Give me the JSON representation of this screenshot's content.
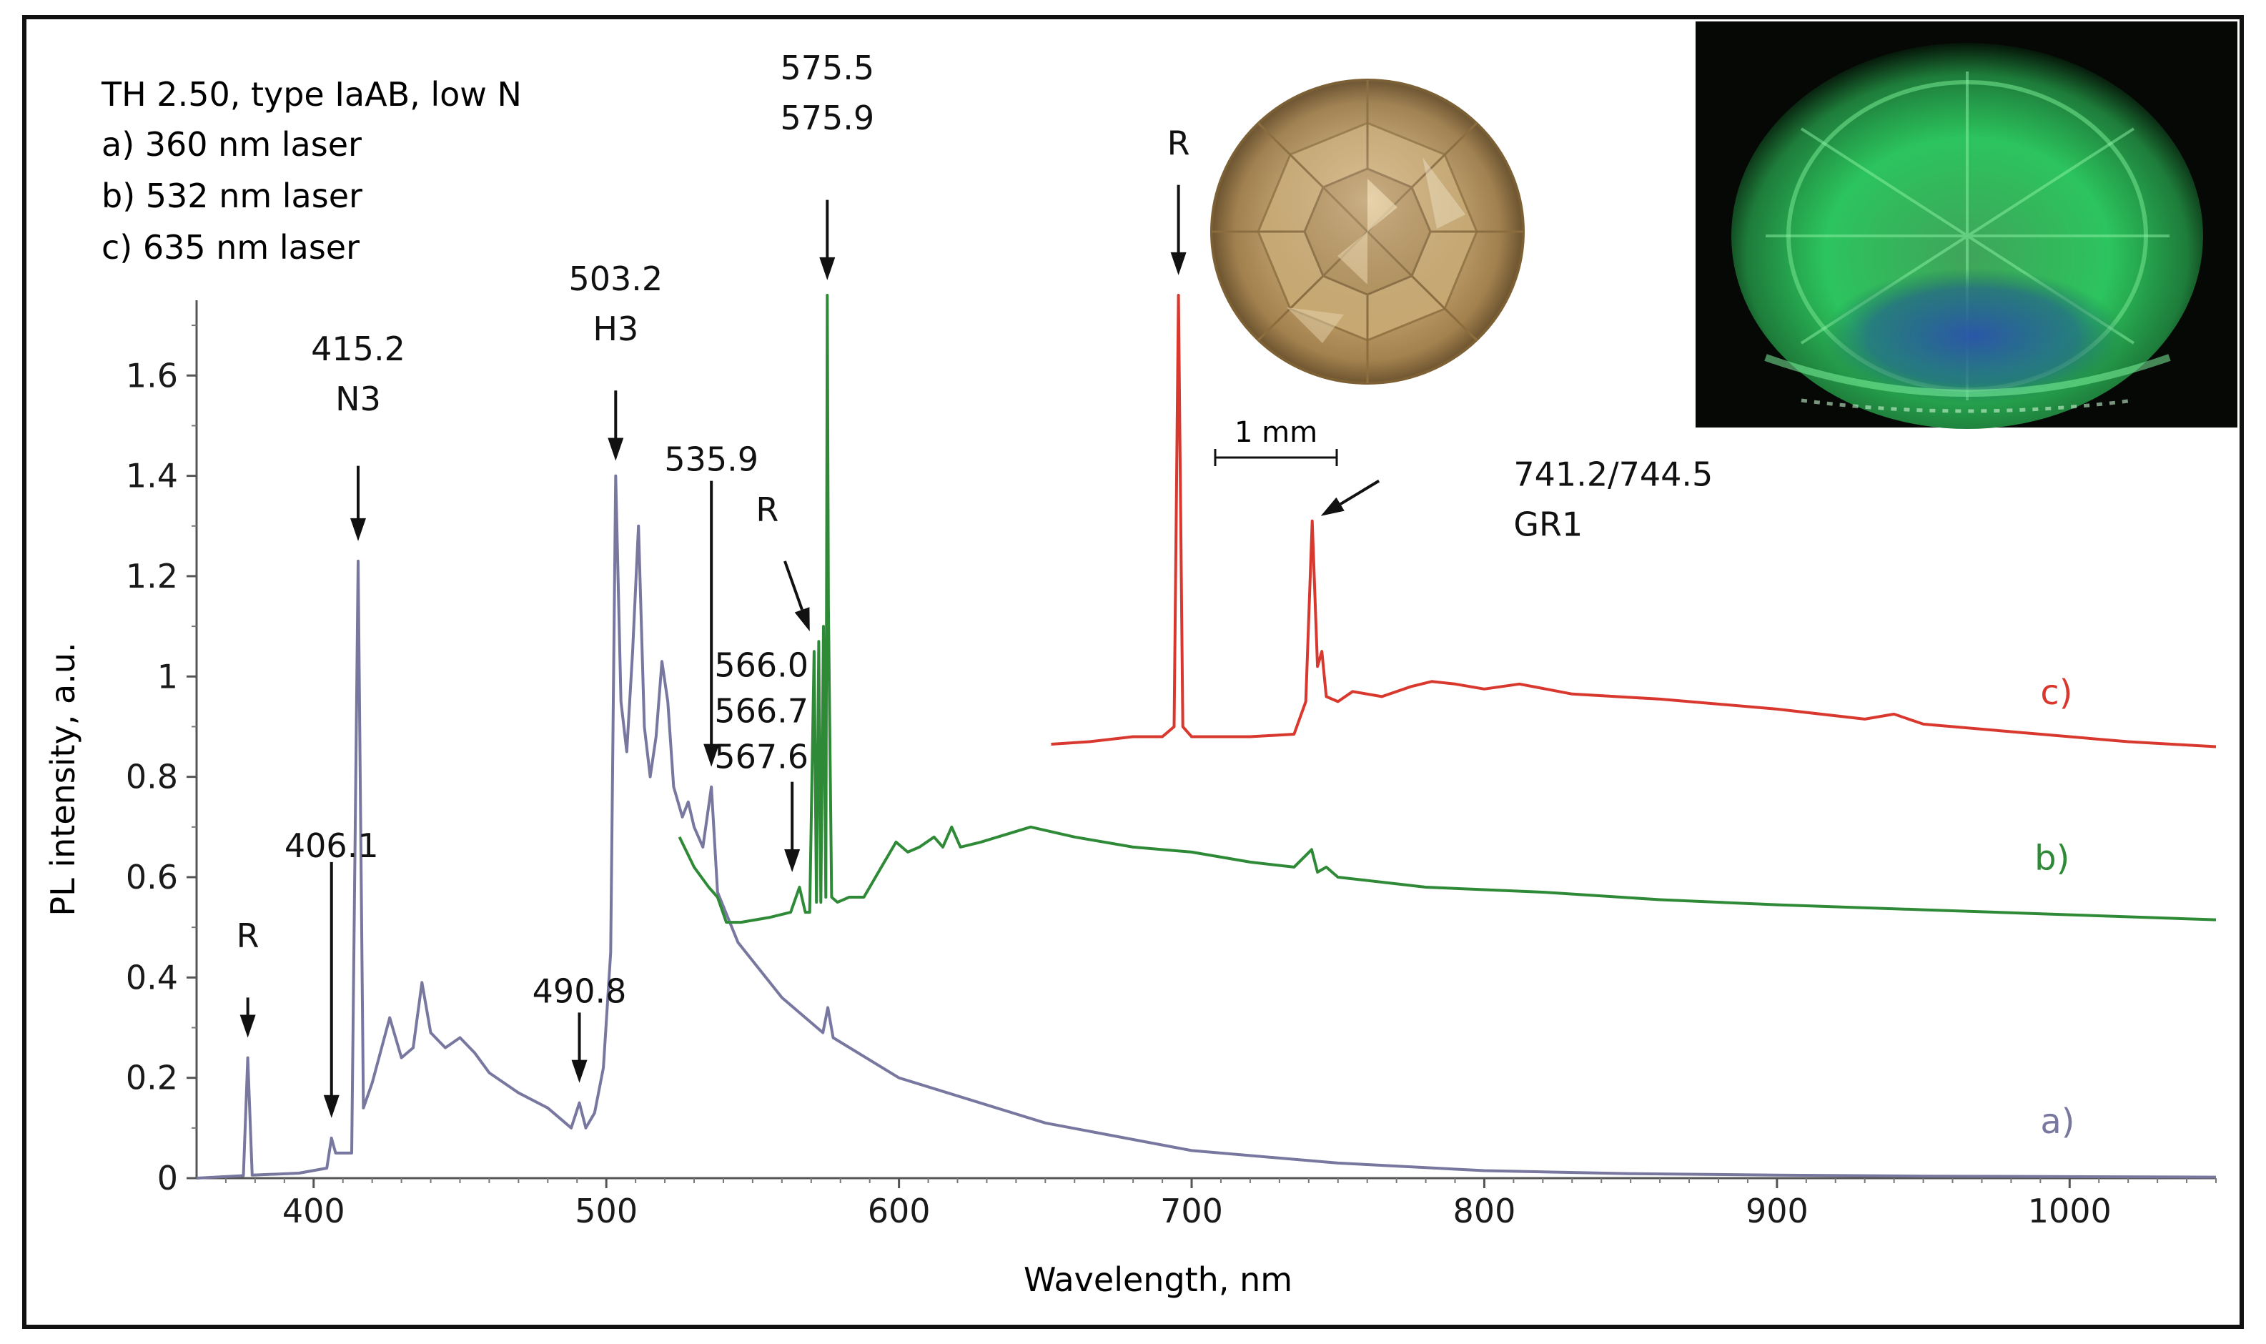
{
  "chart_data": {
    "type": "line",
    "header_lines": [
      {
        "text": "TH 2.50, type IaAB, low N",
        "color": "#1a1a1a"
      },
      {
        "text": "a) 360 nm laser",
        "color": "#77779f"
      },
      {
        "text": "b) 532 nm laser",
        "color": "#2f8a37"
      },
      {
        "text": "c) 635 nm laser",
        "color": "#d8382e"
      }
    ],
    "xlabel": "Wavelength, nm",
    "ylabel": "PL intensity, a.u.",
    "xlim": [
      360,
      1050
    ],
    "ylim": [
      0,
      1.75
    ],
    "x_ticks": [
      400,
      500,
      600,
      700,
      800,
      900,
      1000
    ],
    "x_tick_labels": [
      "400",
      "500",
      "600",
      "700",
      "800",
      "900",
      "1000"
    ],
    "y_ticks": [
      0,
      0.2,
      0.4,
      0.6,
      0.8,
      1.0,
      1.2,
      1.4,
      1.6
    ],
    "y_tick_labels": [
      "0",
      "0.2",
      "0.4",
      "0.6",
      "0.8",
      "1",
      "1.2",
      "1.4",
      "1.6"
    ],
    "grid": false,
    "series": [
      {
        "key": "a",
        "label": "a)",
        "color": "#77779f",
        "label_at": [
          990,
          0.09
        ],
        "x": [
          360,
          376,
          377.5,
          379,
          395,
          404.5,
          406.1,
          407.5,
          413,
          415.2,
          417,
          420,
          426,
          430,
          434,
          437,
          440,
          445,
          450,
          455,
          460,
          470,
          480,
          488,
          490.8,
          493,
          496,
          499,
          501.5,
          503.2,
          505,
          507,
          509,
          511,
          513,
          515,
          517,
          519,
          521,
          523,
          526,
          528,
          530,
          533,
          535.9,
          538,
          545,
          560,
          574,
          575.7,
          577.5,
          600,
          650,
          700,
          750,
          800,
          850,
          900,
          950,
          1000,
          1050
        ],
        "y": [
          0,
          0.005,
          0.24,
          0.006,
          0.01,
          0.02,
          0.08,
          0.05,
          0.05,
          1.23,
          0.14,
          0.19,
          0.32,
          0.24,
          0.26,
          0.39,
          0.29,
          0.26,
          0.28,
          0.25,
          0.21,
          0.17,
          0.14,
          0.1,
          0.15,
          0.1,
          0.13,
          0.22,
          0.45,
          1.4,
          0.95,
          0.85,
          1.05,
          1.3,
          0.9,
          0.8,
          0.88,
          1.03,
          0.95,
          0.78,
          0.72,
          0.75,
          0.7,
          0.66,
          0.78,
          0.57,
          0.47,
          0.36,
          0.29,
          0.34,
          0.28,
          0.2,
          0.11,
          0.055,
          0.03,
          0.015,
          0.009,
          0.006,
          0.004,
          0.003,
          0.002
        ]
      },
      {
        "key": "b",
        "label": "b)",
        "color": "#2f8a37",
        "label_at": [
          988,
          0.615
        ],
        "x": [
          525,
          530,
          535,
          538,
          541,
          546,
          556,
          563,
          566.0,
          568,
          569.5,
          571,
          571.8,
          572.6,
          573.3,
          574.2,
          575.0,
          575.5,
          575.9,
          577,
          579,
          583,
          588,
          594,
          599,
          603,
          607,
          612,
          615,
          618,
          621,
          628,
          645,
          660,
          680,
          700,
          720,
          735,
          741,
          743,
          746,
          750,
          780,
          820,
          860,
          900,
          950,
          1000,
          1050
        ],
        "y": [
          0.68,
          0.62,
          0.58,
          0.56,
          0.51,
          0.51,
          0.52,
          0.53,
          0.58,
          0.53,
          0.53,
          1.05,
          0.55,
          1.07,
          0.55,
          1.1,
          0.56,
          1.76,
          1.14,
          0.56,
          0.55,
          0.56,
          0.56,
          0.62,
          0.67,
          0.65,
          0.66,
          0.68,
          0.66,
          0.7,
          0.66,
          0.67,
          0.7,
          0.68,
          0.66,
          0.65,
          0.63,
          0.62,
          0.655,
          0.61,
          0.62,
          0.6,
          0.58,
          0.57,
          0.555,
          0.545,
          0.535,
          0.525,
          0.515
        ]
      },
      {
        "key": "c",
        "label": "c)",
        "color": "#d8382e",
        "label_at": [
          990,
          0.945
        ],
        "x": [
          652,
          665,
          680,
          690,
          694,
          695.5,
          697,
          700,
          720,
          735,
          739,
          741.2,
          743,
          744.5,
          746,
          750,
          755,
          765,
          775,
          782,
          790,
          800,
          812,
          830,
          860,
          900,
          930,
          940,
          950,
          980,
          1020,
          1050
        ],
        "y": [
          0.865,
          0.87,
          0.88,
          0.88,
          0.9,
          1.76,
          0.9,
          0.88,
          0.88,
          0.885,
          0.95,
          1.31,
          1.02,
          1.05,
          0.96,
          0.95,
          0.97,
          0.96,
          0.98,
          0.99,
          0.985,
          0.975,
          0.985,
          0.965,
          0.955,
          0.935,
          0.915,
          0.925,
          0.905,
          0.89,
          0.87,
          0.86
        ]
      }
    ],
    "annotations": [
      {
        "id": "r-378",
        "lines": [
          "R"
        ],
        "arrow_x": 377.5,
        "tip_y": 0.28,
        "tail_y": 0.36,
        "text_y": 0.46
      },
      {
        "id": "p-406",
        "lines": [
          "406.1"
        ],
        "arrow_x": 406.1,
        "tip_y": 0.12,
        "tail_y": 0.63,
        "text_y": 0.64
      },
      {
        "id": "p-415",
        "lines": [
          "415.2",
          "N3"
        ],
        "arrow_x": 415.2,
        "tip_y": 1.27,
        "tail_y": 1.42,
        "text_y": 1.63
      },
      {
        "id": "p-491",
        "lines": [
          "490.8"
        ],
        "arrow_x": 490.8,
        "tip_y": 0.19,
        "tail_y": 0.33,
        "text_y": 0.35
      },
      {
        "id": "p-503",
        "lines": [
          "503.2",
          "H3"
        ],
        "arrow_x": 503.2,
        "tip_y": 1.43,
        "tail_y": 1.57,
        "text_y": 1.77
      },
      {
        "id": "p-536",
        "lines": [
          "535.9"
        ],
        "arrow_x": 535.9,
        "tip_y": 0.82,
        "tail_y": 1.39,
        "text_y": 1.41
      },
      {
        "id": "p-566",
        "lines": [
          "566.0",
          "566.7",
          "567.6"
        ],
        "arrow_x": 563.5,
        "tip_y": 0.61,
        "tail_y": 0.79,
        "text_y": 1.0,
        "text_x": 553,
        "text_anchor": "middle"
      },
      {
        "id": "p-575",
        "lines": [
          "575.5",
          "575.9"
        ],
        "arrow_x": 575.5,
        "tip_y": 1.79,
        "tail_y": 1.95,
        "text_y": 2.19
      },
      {
        "id": "r-695",
        "lines": [
          "R"
        ],
        "arrow_x": 695.5,
        "tip_y": 1.8,
        "tail_y": 1.98,
        "text_y": 2.04
      },
      {
        "id": "p-741",
        "lines": [
          "741.2/744.5",
          "GR1"
        ],
        "arrow_x": 741.2,
        "arrow_x2": 764,
        "tip_y": 1.32,
        "tail_y": 1.39,
        "text_y": 1.38,
        "text_x": 810,
        "text_anchor": "start"
      }
    ],
    "r_diag": {
      "lines": [
        "R"
      ],
      "text_x": 555,
      "text_y": 1.31,
      "from": [
        561,
        1.23
      ],
      "to": [
        569.5,
        1.09
      ]
    },
    "scale_bar": {
      "label": "1 mm"
    }
  }
}
